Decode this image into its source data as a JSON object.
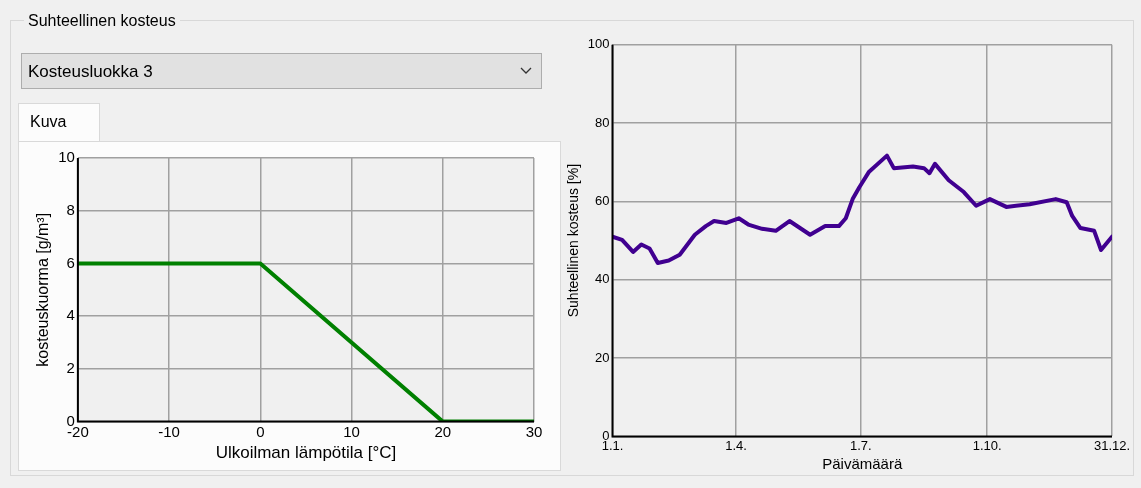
{
  "chart_data": [
    {
      "type": "other",
      "title": "Suhteellinen kosteus",
      "annotations": [
        "Kosteusluokka 3",
        "Kuva"
      ]
    },
    {
      "type": "line",
      "xlabel": "Ulkoilman lämpötila [°C]",
      "ylabel": "kosteuskuorma [g/m³]",
      "x": [
        -20,
        0,
        20,
        30
      ],
      "values": [
        6,
        6,
        0,
        0
      ],
      "color": "#008000",
      "xlim": [
        -20,
        30
      ],
      "xticks": [
        -20,
        -10,
        0,
        10,
        20,
        30
      ],
      "ylim": [
        0,
        10
      ],
      "yticks": [
        0,
        2,
        4,
        6,
        8,
        10
      ],
      "grid": true
    },
    {
      "type": "line",
      "xlabel": "Päivämäärä",
      "ylabel": "Suhteellinen kosteus [%]",
      "color": "#400090",
      "xlim": [
        "--01-01",
        "--12-31"
      ],
      "xticks": [
        {
          "value": "--01-01",
          "label": "1.1."
        },
        {
          "value": "--04-01",
          "label": "1.4."
        },
        {
          "value": "--07-01",
          "label": "1.7."
        },
        {
          "value": "--10-01",
          "label": "1.10."
        },
        {
          "value": "--12-31",
          "label": "31.12."
        }
      ],
      "ylim": [
        0,
        100
      ],
      "yticks": [
        0,
        20,
        40,
        60,
        80,
        100
      ],
      "grid": true,
      "x": [
        "--01-01",
        "--01-08",
        "--01-16",
        "--01-22",
        "--01-28",
        "--02-03",
        "--02-11",
        "--02-19",
        "--03-02",
        "--03-10",
        "--03-16",
        "--03-25",
        "--04-03",
        "--04-10",
        "--04-20",
        "--04-30",
        "--05-10",
        "--05-25",
        "--06-05",
        "--06-15",
        "--06-20",
        "--06-25",
        "--06-30",
        "--07-07",
        "--07-20",
        "--07-25",
        "--08-08",
        "--08-16",
        "--08-20",
        "--08-24",
        "--09-03",
        "--09-14",
        "--09-23",
        "--10-03",
        "--10-15",
        "--11-01",
        "--11-20",
        "--11-28",
        "--12-02",
        "--12-08",
        "--12-18",
        "--12-23",
        "--12-31"
      ],
      "values": [
        51,
        50.2,
        47.1,
        49,
        48,
        44.3,
        44.9,
        46.4,
        51.5,
        53.7,
        55,
        54.5,
        55.7,
        54.1,
        53,
        52.5,
        55,
        51.5,
        53.7,
        53.7,
        55.7,
        60.6,
        63.7,
        67.6,
        71.7,
        68.5,
        68.9,
        68.5,
        67.2,
        69.6,
        65.4,
        62.4,
        58.9,
        60.6,
        58.6,
        59.3,
        60.6,
        59.8,
        56.3,
        53.2,
        52.5,
        47.6,
        51
      ]
    }
  ]
}
